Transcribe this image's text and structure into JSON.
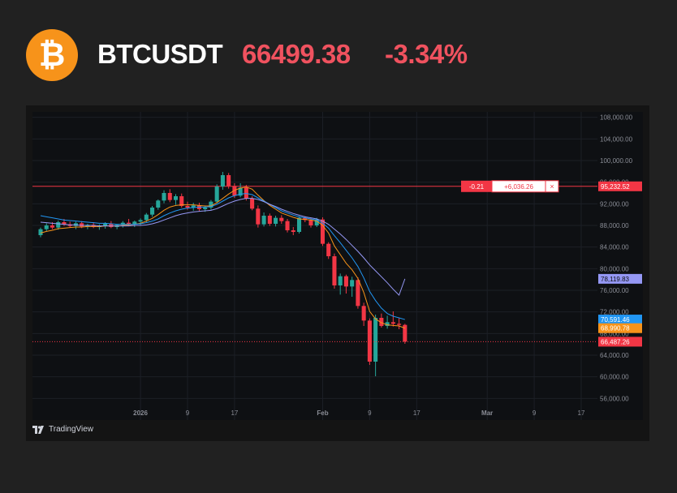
{
  "ticker": {
    "symbol": "BTCUSDT",
    "price": "66499.38",
    "change": "-3.34%",
    "icon": "bitcoin-icon"
  },
  "colors": {
    "up": "#26a69a",
    "down": "#f23645",
    "ma_fast": "#f7931a",
    "ma_mid": "#2196f3",
    "ma_slow": "#9598f5",
    "hline": "#f23645"
  },
  "watermark": "TradingView",
  "chart_data": {
    "type": "candlestick",
    "ylim": [
      52000,
      109000
    ],
    "y_ticks": [
      108000,
      104000,
      100000,
      96000,
      92000,
      88000,
      84000,
      80000,
      76000,
      72000,
      68000,
      64000,
      60000,
      56000
    ],
    "y_tick_labels": [
      "108,000.00",
      "104,000.00",
      "100,000.00",
      "96,000.00",
      "92,000.00",
      "88,000.00",
      "84,000.00",
      "80,000.00",
      "76,000.00",
      "72,000.00",
      "68,000.00",
      "64,000.00",
      "60,000.00",
      "56,000.00"
    ],
    "x_ticks": [
      {
        "label": "2026",
        "index": 17
      },
      {
        "label": "9",
        "index": 25
      },
      {
        "label": "17",
        "index": 33
      },
      {
        "label": "Feb",
        "index": 48
      },
      {
        "label": "9",
        "index": 56
      },
      {
        "label": "17",
        "index": 64
      },
      {
        "label": "Mar",
        "index": 76
      },
      {
        "label": "9",
        "index": 84
      },
      {
        "label": "17",
        "index": 92
      }
    ],
    "index_span": [
      0,
      92
    ],
    "candles": [
      [
        86200,
        87600,
        85800,
        87300
      ],
      [
        87300,
        88400,
        86900,
        88000
      ],
      [
        88000,
        88600,
        87300,
        87600
      ],
      [
        87600,
        88900,
        87200,
        88600
      ],
      [
        88600,
        89200,
        87900,
        88200
      ],
      [
        88200,
        88700,
        87600,
        87900
      ],
      [
        87900,
        88700,
        87300,
        88400
      ],
      [
        88400,
        88800,
        87500,
        87800
      ],
      [
        87800,
        88300,
        87300,
        88100
      ],
      [
        88100,
        88600,
        87500,
        87700
      ],
      [
        87700,
        88200,
        87200,
        87900
      ],
      [
        87900,
        88600,
        87400,
        88300
      ],
      [
        88300,
        88800,
        87500,
        87700
      ],
      [
        87700,
        88200,
        87300,
        88100
      ],
      [
        88100,
        88800,
        87600,
        88500
      ],
      [
        88500,
        89200,
        87900,
        88300
      ],
      [
        88300,
        88900,
        87700,
        88700
      ],
      [
        88700,
        89300,
        88100,
        89000
      ],
      [
        89000,
        90300,
        88600,
        90000
      ],
      [
        90000,
        91600,
        89600,
        91300
      ],
      [
        91300,
        92800,
        90900,
        92600
      ],
      [
        92600,
        94500,
        92100,
        94000
      ],
      [
        94000,
        94700,
        92300,
        92700
      ],
      [
        92700,
        93800,
        91800,
        93400
      ],
      [
        93400,
        93900,
        91300,
        91600
      ],
      [
        91600,
        92400,
        90900,
        91300
      ],
      [
        91300,
        92200,
        90700,
        91700
      ],
      [
        91700,
        92200,
        90600,
        91000
      ],
      [
        91000,
        91700,
        90500,
        91300
      ],
      [
        91300,
        92700,
        90900,
        92400
      ],
      [
        92400,
        95600,
        92100,
        95200
      ],
      [
        95200,
        97900,
        94600,
        97300
      ],
      [
        97300,
        97700,
        94800,
        95300
      ],
      [
        95300,
        95800,
        93100,
        93500
      ],
      [
        93500,
        95800,
        93200,
        95000
      ],
      [
        95000,
        95500,
        92600,
        93000
      ],
      [
        93000,
        93400,
        90800,
        91100
      ],
      [
        91100,
        91700,
        87600,
        88200
      ],
      [
        88200,
        90400,
        87800,
        89800
      ],
      [
        89800,
        90200,
        87900,
        88300
      ],
      [
        88300,
        89800,
        87800,
        89400
      ],
      [
        89400,
        89900,
        88300,
        88800
      ],
      [
        88800,
        89200,
        86700,
        87100
      ],
      [
        87100,
        87700,
        86200,
        86800
      ],
      [
        86800,
        89700,
        86500,
        89400
      ],
      [
        89400,
        89700,
        88600,
        89000
      ],
      [
        89000,
        89400,
        87600,
        88000
      ],
      [
        88000,
        89400,
        87700,
        89100
      ],
      [
        89100,
        89500,
        84200,
        84600
      ],
      [
        84600,
        84900,
        81800,
        82300
      ],
      [
        82300,
        82800,
        76300,
        76900
      ],
      [
        76900,
        79100,
        75200,
        78600
      ],
      [
        78600,
        78900,
        75400,
        76700
      ],
      [
        76700,
        78500,
        74800,
        77900
      ],
      [
        77900,
        78400,
        72600,
        73100
      ],
      [
        73100,
        73700,
        69400,
        70400
      ],
      [
        70400,
        70800,
        62200,
        62800
      ],
      [
        62800,
        71500,
        60100,
        70900
      ],
      [
        70900,
        71700,
        69100,
        69400
      ],
      [
        69400,
        71300,
        68900,
        70100
      ],
      [
        70100,
        72100,
        69300,
        69800
      ],
      [
        69800,
        70900,
        68800,
        69600
      ],
      [
        69600,
        69800,
        66100,
        66500
      ]
    ],
    "series": [
      {
        "values": [
          86600,
          86900,
          87100,
          87400,
          87500,
          87600,
          87700,
          87700,
          87800,
          87800,
          87800,
          87900,
          87900,
          87900,
          88000,
          88100,
          88200,
          88400,
          88800,
          89300,
          90000,
          90800,
          91400,
          91700,
          91800,
          91800,
          91800,
          91700,
          91600,
          91600,
          92200,
          93000,
          93800,
          94500,
          94900,
          95100,
          94700,
          93600,
          92600,
          91700,
          91000,
          90300,
          89900,
          89500,
          89200,
          89100,
          89000,
          88800,
          88000,
          86600,
          84200,
          82600,
          81000,
          79800,
          78200,
          75600,
          72100,
          70700,
          70000,
          69600,
          69500,
          69400,
          68990
        ]
      },
      {
        "values": [
          89800,
          89600,
          89400,
          89200,
          89000,
          88900,
          88800,
          88700,
          88600,
          88500,
          88400,
          88400,
          88300,
          88200,
          88200,
          88200,
          88200,
          88300,
          88500,
          88800,
          89200,
          89800,
          90300,
          90700,
          91000,
          91200,
          91300,
          91400,
          91400,
          91500,
          91900,
          92500,
          93100,
          93500,
          93800,
          93900,
          93700,
          93100,
          92500,
          91900,
          91300,
          90700,
          90300,
          89900,
          89600,
          89400,
          89200,
          89000,
          88400,
          87500,
          86100,
          84800,
          83400,
          82000,
          80400,
          78300,
          75800,
          74100,
          72700,
          71700,
          71200,
          70900,
          70591
        ]
      },
      {
        "values": [
          88600,
          88500,
          88400,
          88300,
          88200,
          88100,
          88100,
          88000,
          88000,
          88000,
          87900,
          87900,
          87900,
          87900,
          87900,
          87900,
          88000,
          88000,
          88100,
          88300,
          88600,
          89000,
          89400,
          89800,
          90100,
          90300,
          90500,
          90600,
          90700,
          90800,
          91100,
          91600,
          92100,
          92500,
          92800,
          93000,
          93000,
          92800,
          92400,
          91900,
          91500,
          91000,
          90600,
          90200,
          89900,
          89600,
          89400,
          89200,
          88800,
          88200,
          87300,
          86400,
          85400,
          84300,
          83200,
          82000,
          80700,
          79600,
          78500,
          77400,
          76200,
          75100,
          78119
        ]
      }
    ],
    "horizontal_line": {
      "value": 95232.52,
      "label": "95,232.52"
    },
    "measure_box": {
      "left": "-0.21",
      "right": "+6,036.26",
      "close": "×"
    },
    "price_labels": [
      {
        "value": 78119.83,
        "label": "78,119.83",
        "color": "#9598f5"
      },
      {
        "value": 70591.46,
        "label": "70,591.46",
        "color": "#2196f3"
      },
      {
        "value": 68990.78,
        "label": "68,990.78",
        "color": "#f7931a"
      },
      {
        "value": 66487.26,
        "label": "66,487.26",
        "color": "#f23645"
      }
    ],
    "grid": true
  }
}
